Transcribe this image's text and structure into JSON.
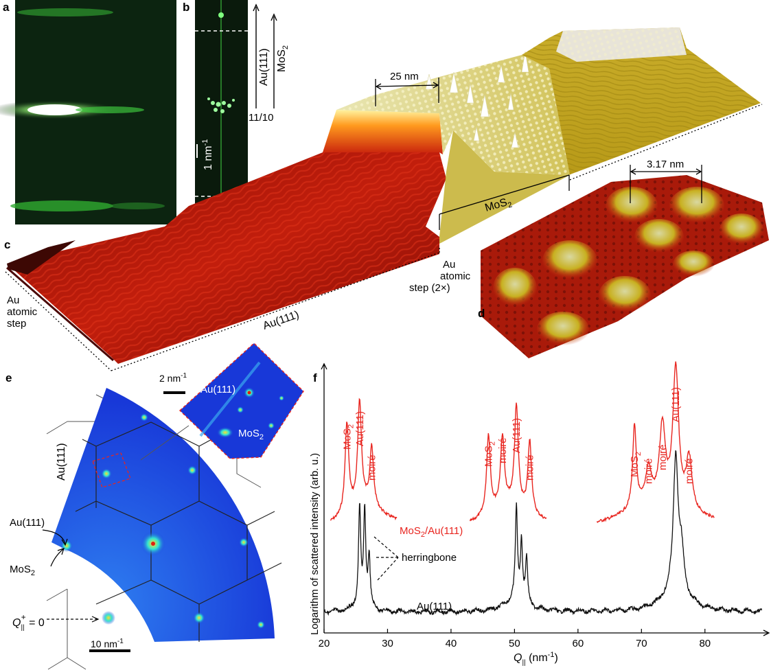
{
  "panels": {
    "a": "a",
    "b": "b",
    "c": "c",
    "d": "d",
    "e": "e",
    "f": "f"
  },
  "panel_b": {
    "axis_au": "Au(111)",
    "axis_mos2": "MoS",
    "mos2_sub": "2",
    "ratio": "11/10",
    "scale": "1 nm",
    "scale_sup": "-1"
  },
  "panel_c": {
    "dim_moire": "25 nm",
    "mos2": "MoS",
    "mos2_sub": "2",
    "au_step_left": [
      "Au",
      "atomic",
      "step"
    ],
    "au_step_right": [
      "Au",
      "atomic",
      "step (2×)"
    ],
    "au111": "Au(111)"
  },
  "panel_d": {
    "dim": "3.17 nm"
  },
  "panel_e": {
    "scale_inset": "2 nm",
    "scale_inset_sup": "-1",
    "inset_au": "Au(111)",
    "inset_mos2": "MoS",
    "inset_mos2_sub": "2",
    "hex_label": "Au(111)",
    "au_arrow": "Au(111)",
    "mos2_arrow": "MoS",
    "mos2_arrow_sub": "2",
    "q": "Q",
    "q_sub": "||",
    "q_sup": "+",
    "q_eq": " = 0",
    "scale_main": "10 nm",
    "scale_main_sup": "-1"
  },
  "chart_data": {
    "type": "line",
    "xlabel": "Q",
    "xlabel_sub": "||",
    "xlabel_unit": " (nm",
    "xlabel_unit_sup": "-1",
    "xlabel_close": ")",
    "ylabel": "Logarithm of scattered intensity (arb. u.)",
    "xlim": [
      20,
      89
    ],
    "xticks": [
      20,
      30,
      40,
      50,
      60,
      70,
      80
    ],
    "series": [
      {
        "name": "MoS2/Au(111)",
        "color": "#e8251f",
        "segments": [
          [
            21,
            31.5
          ],
          [
            43,
            55
          ],
          [
            63,
            81.5
          ]
        ],
        "peaks": [
          {
            "x": 23.6,
            "label": "MoS",
            "sub": "2"
          },
          {
            "x": 25.6,
            "label": "Au(111)"
          },
          {
            "x": 27.5,
            "label": "moiré"
          },
          {
            "x": 45.9,
            "label": "MoS",
            "sub": "2"
          },
          {
            "x": 48.1,
            "label": "moiré"
          },
          {
            "x": 50.3,
            "label": "Au(111)"
          },
          {
            "x": 52.4,
            "label": "moiré"
          },
          {
            "x": 68.9,
            "label": "MoS",
            "sub": "2"
          },
          {
            "x": 71.1,
            "label": "moiré"
          },
          {
            "x": 73.3,
            "label": "moiré"
          },
          {
            "x": 75.4,
            "label": "Au(111)"
          },
          {
            "x": 77.5,
            "label": "moiré"
          }
        ]
      },
      {
        "name": "Au(111)",
        "color": "#111111",
        "segments": [
          [
            20,
            89
          ]
        ],
        "peaks": [
          {
            "x": 25.6
          },
          {
            "x": 26.4
          },
          {
            "x": 27.1
          },
          {
            "x": 50.3
          },
          {
            "x": 51.1
          },
          {
            "x": 51.9
          },
          {
            "x": 75.4
          },
          {
            "x": 76.3
          }
        ]
      }
    ],
    "annotations": {
      "curve_red": "MoS",
      "curve_red_sub": "2",
      "curve_red_rest": "/Au(111)",
      "herringbone": "herringbone",
      "curve_black": "Au(111)"
    }
  },
  "colors": {
    "red": "#e8251f",
    "dark": "#111111",
    "green_bg": "#0c2410",
    "blue_map": "#1a3fe0"
  }
}
